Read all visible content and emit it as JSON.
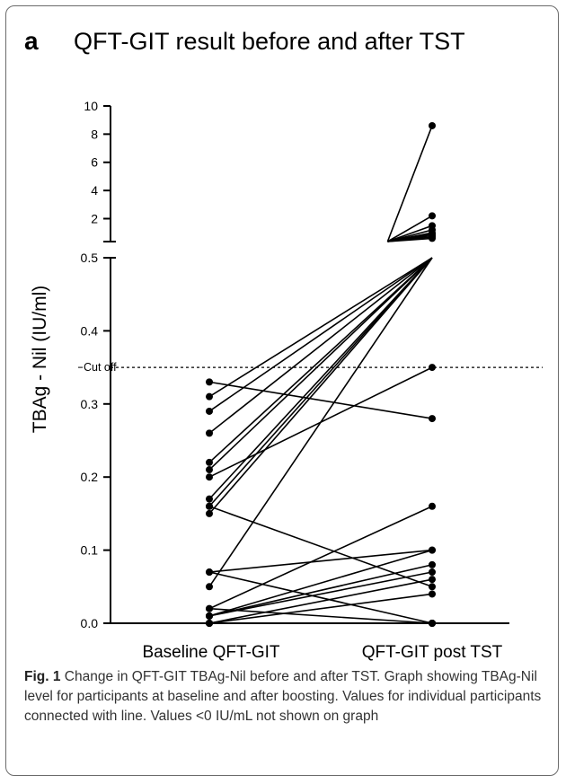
{
  "panel_label": "a",
  "caption": {
    "label": "Fig. 1",
    "text": "Change in QFT-GIT TBAg-Nil before and after TST. Graph showing TBAg-Nil level for participants at baseline and after boosting. Values for individual participants connected with line. Values <0 IU/mL not shown on graph"
  },
  "chart_data": {
    "type": "line",
    "title": "QFT-GIT result before and after TST",
    "ylabel": "TBAg - Nil (IU/ml)",
    "xlabel": "",
    "categories": [
      "Baseline QFT-GIT",
      "QFT-GIT post TST"
    ],
    "y_axis_broken": true,
    "ylim_lower": [
      0,
      0.5
    ],
    "ylim_upper": [
      0.5,
      10
    ],
    "yticks_lower": [
      "0.0",
      "0.1",
      "0.2",
      "0.3",
      "0.4",
      "0.5"
    ],
    "yticks_upper": [
      "2",
      "4",
      "6",
      "8",
      "10"
    ],
    "cutoff": {
      "value": 0.35,
      "label": "Cut off"
    },
    "grid": false,
    "legend": "none",
    "series": [
      {
        "values": [
          0.33,
          0.28
        ]
      },
      {
        "values": [
          0.31,
          1.5
        ]
      },
      {
        "values": [
          0.29,
          1.0
        ]
      },
      {
        "values": [
          0.26,
          1.2
        ]
      },
      {
        "values": [
          0.22,
          8.6
        ]
      },
      {
        "values": [
          0.21,
          0.8
        ]
      },
      {
        "values": [
          0.2,
          0.35
        ]
      },
      {
        "values": [
          0.17,
          2.2
        ]
      },
      {
        "values": [
          0.16,
          0.9
        ]
      },
      {
        "values": [
          0.15,
          0.7
        ]
      },
      {
        "values": [
          0.16,
          0.05
        ]
      },
      {
        "values": [
          0.07,
          0.1
        ]
      },
      {
        "values": [
          0.07,
          0.0
        ]
      },
      {
        "values": [
          0.05,
          0.6
        ]
      },
      {
        "values": [
          0.02,
          0.16
        ]
      },
      {
        "values": [
          0.02,
          0.0
        ]
      },
      {
        "values": [
          0.01,
          0.08
        ]
      },
      {
        "values": [
          0.01,
          0.07
        ]
      },
      {
        "values": [
          0.0,
          0.06
        ]
      },
      {
        "values": [
          0.0,
          0.04
        ]
      },
      {
        "values": [
          0.01,
          0.1
        ]
      },
      {
        "values": [
          0.0,
          0.0
        ]
      }
    ]
  }
}
